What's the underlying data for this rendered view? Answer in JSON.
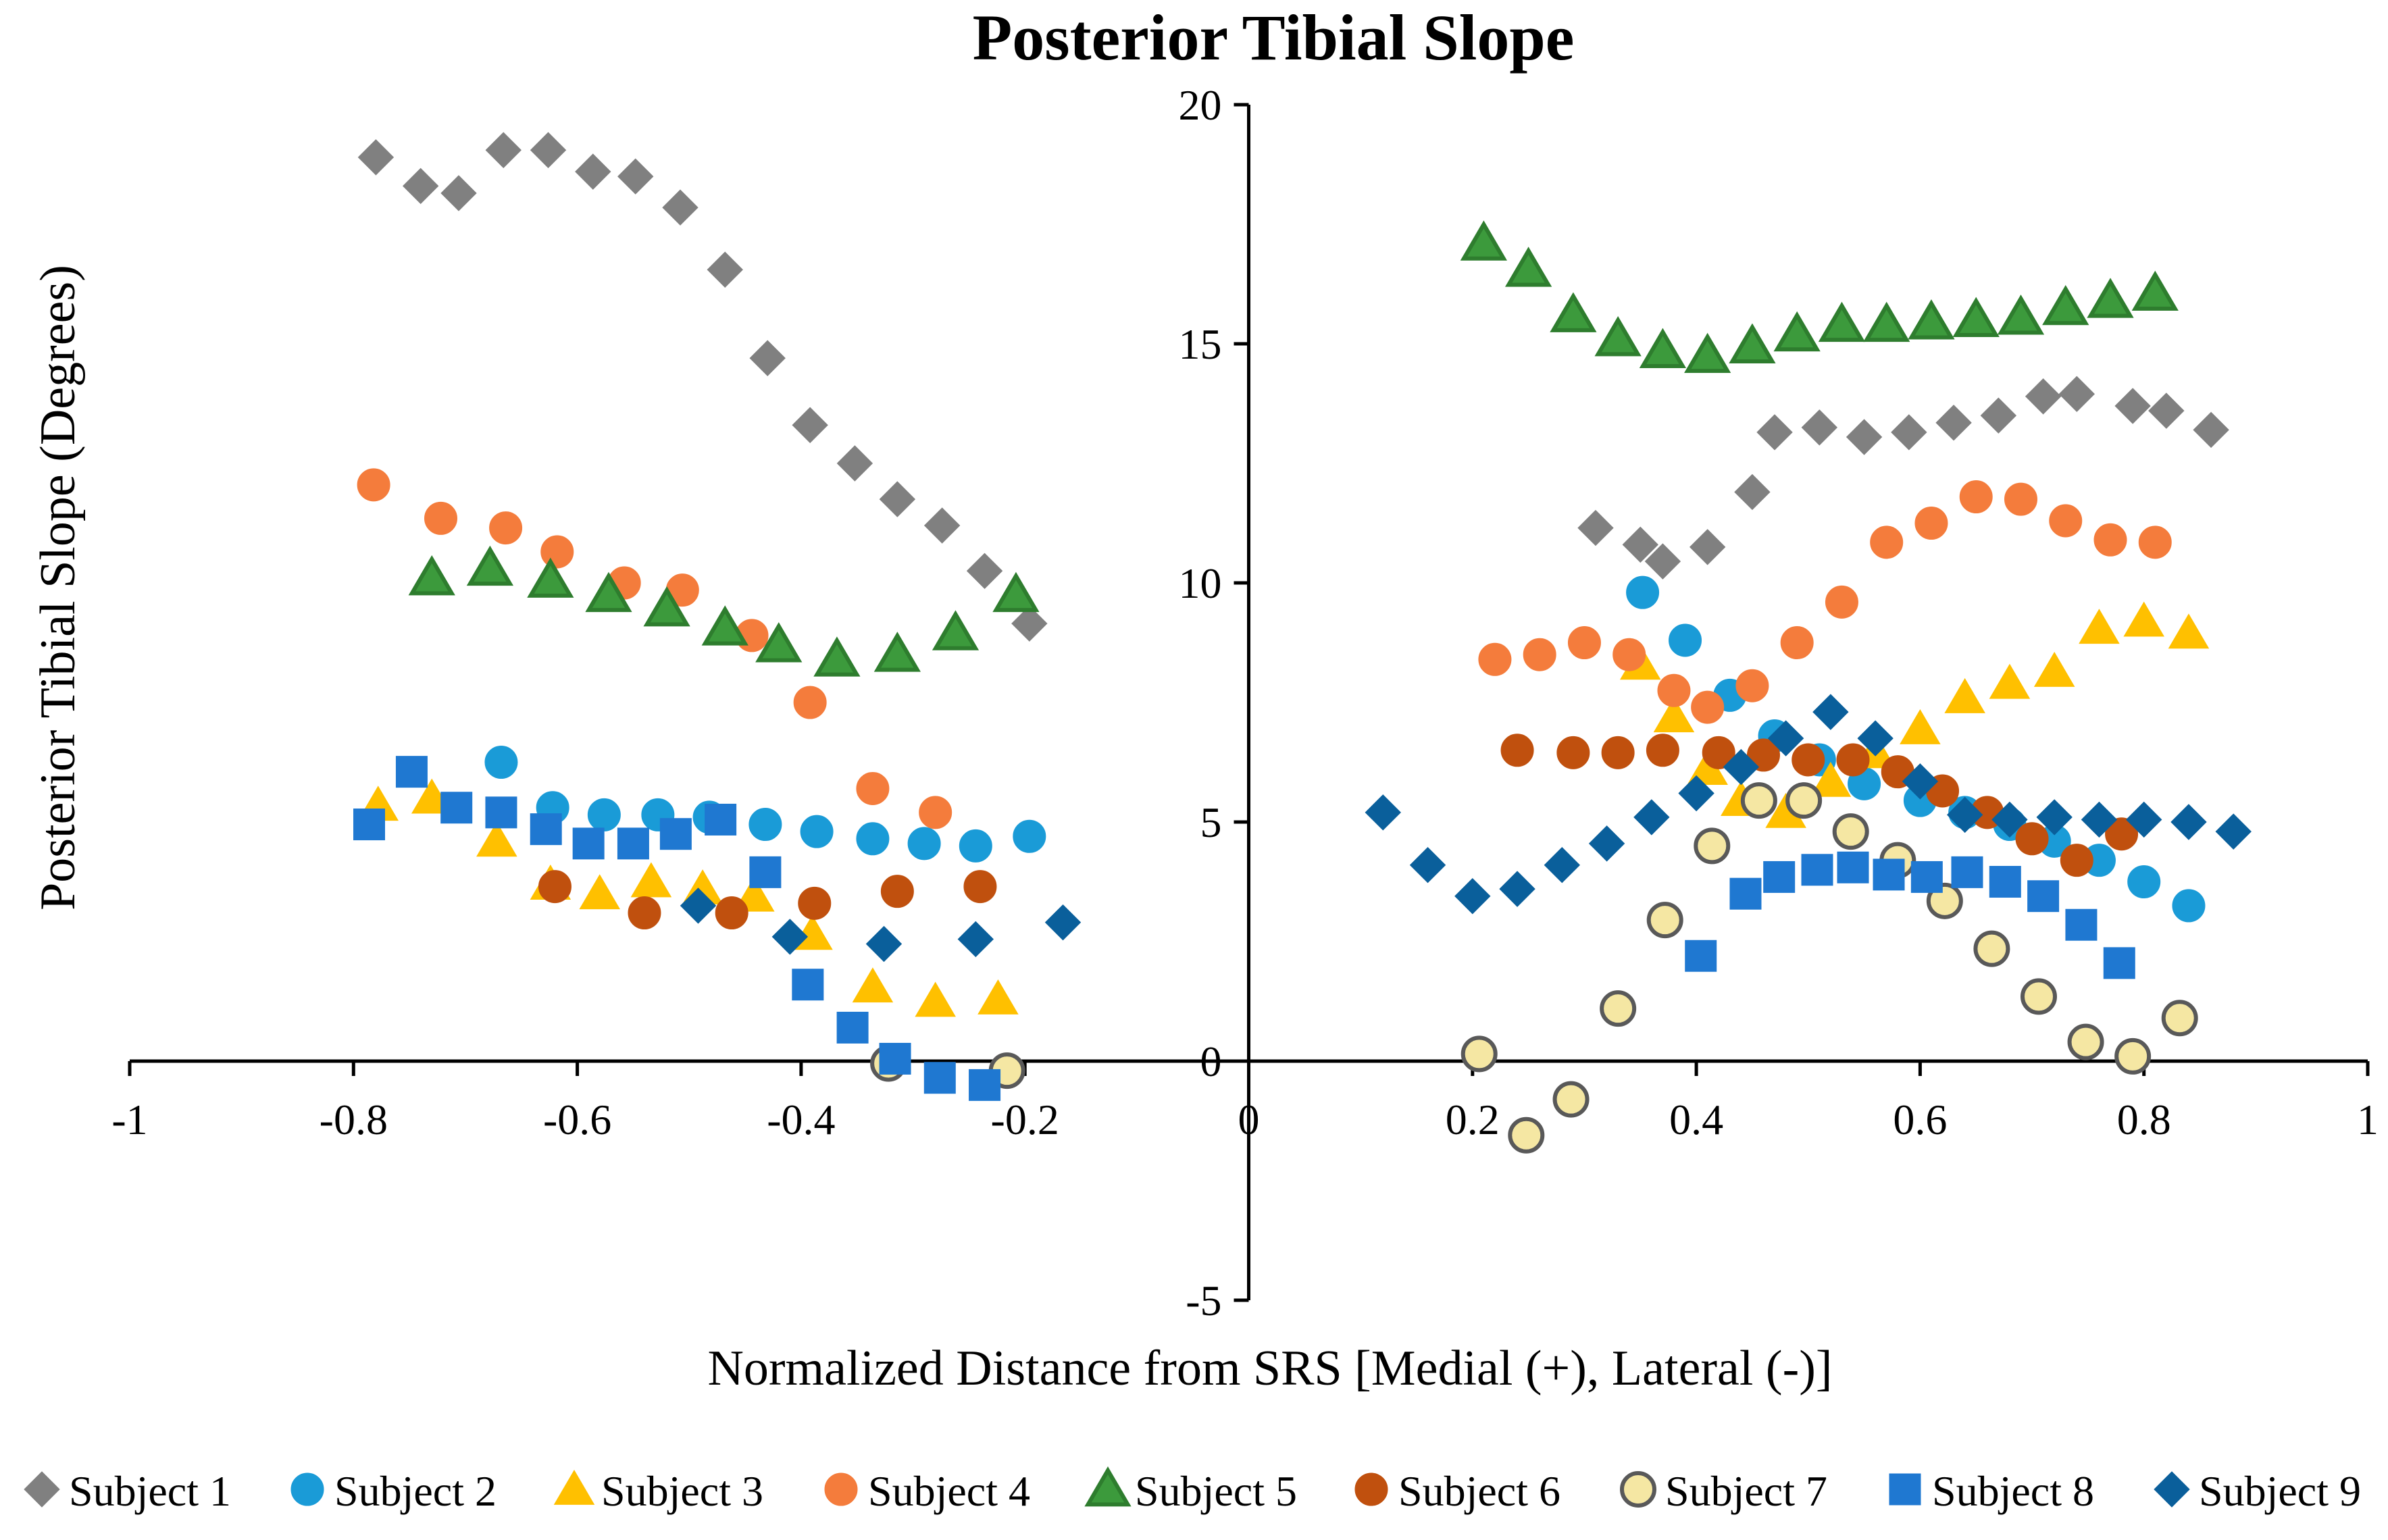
{
  "chart_data": {
    "type": "scatter",
    "title": "Posterior Tibial Slope",
    "xlabel": "Normalized Distance from SRS [Medial (+), Lateral (-)]",
    "ylabel": "Posterior Tibial Slope (Degrees)",
    "xlim": [
      -1,
      1
    ],
    "ylim": [
      -5,
      20
    ],
    "x_ticks": [
      -1,
      -0.8,
      -0.6,
      -0.4,
      -0.2,
      0,
      0.2,
      0.4,
      0.6,
      0.8,
      1
    ],
    "x_tick_labels": [
      "-1",
      "-0.8",
      "-0.6",
      "-0.4",
      "-0.2",
      "0",
      "0.2",
      "0.4",
      "0.6",
      "0.8",
      "1"
    ],
    "y_ticks": [
      -5,
      0,
      5,
      10,
      15,
      20
    ],
    "y_tick_labels": [
      "-5",
      "0",
      "5",
      "10",
      "15",
      "20"
    ],
    "grid": false,
    "legend_position": "bottom",
    "series": [
      {
        "name": "Subject 1",
        "marker": "diamond",
        "color": "#808080",
        "stroke": "#808080",
        "points": [
          [
            -0.78,
            18.9
          ],
          [
            -0.74,
            18.3
          ],
          [
            -0.706,
            18.15
          ],
          [
            -0.666,
            19.05
          ],
          [
            -0.626,
            19.05
          ],
          [
            -0.586,
            18.6
          ],
          [
            -0.548,
            18.5
          ],
          [
            -0.508,
            17.85
          ],
          [
            -0.468,
            16.55
          ],
          [
            -0.43,
            14.7
          ],
          [
            -0.392,
            13.3
          ],
          [
            -0.352,
            12.5
          ],
          [
            -0.314,
            11.75
          ],
          [
            -0.274,
            11.2
          ],
          [
            -0.236,
            10.25
          ],
          [
            -0.196,
            9.15
          ],
          [
            0.31,
            11.15
          ],
          [
            0.35,
            10.8
          ],
          [
            0.37,
            10.45
          ],
          [
            0.41,
            10.75
          ],
          [
            0.45,
            11.9
          ],
          [
            0.47,
            13.15
          ],
          [
            0.51,
            13.25
          ],
          [
            0.55,
            13.05
          ],
          [
            0.59,
            13.15
          ],
          [
            0.63,
            13.35
          ],
          [
            0.67,
            13.5
          ],
          [
            0.71,
            13.9
          ],
          [
            0.74,
            13.95
          ],
          [
            0.79,
            13.7
          ],
          [
            0.82,
            13.6
          ],
          [
            0.86,
            13.2
          ]
        ]
      },
      {
        "name": "Subject 2",
        "marker": "circle",
        "color": "#1a9bd7",
        "stroke": "#1a9bd7",
        "points": [
          [
            -0.668,
            6.25
          ],
          [
            -0.622,
            5.3
          ],
          [
            -0.576,
            5.15
          ],
          [
            -0.528,
            5.15
          ],
          [
            -0.482,
            5.1
          ],
          [
            -0.432,
            4.95
          ],
          [
            -0.386,
            4.8
          ],
          [
            -0.336,
            4.65
          ],
          [
            -0.29,
            4.55
          ],
          [
            -0.244,
            4.5
          ],
          [
            -0.196,
            4.7
          ],
          [
            0.352,
            9.8
          ],
          [
            0.39,
            8.8
          ],
          [
            0.43,
            7.65
          ],
          [
            0.47,
            6.8
          ],
          [
            0.51,
            6.3
          ],
          [
            0.55,
            5.8
          ],
          [
            0.6,
            5.45
          ],
          [
            0.64,
            5.2
          ],
          [
            0.68,
            4.95
          ],
          [
            0.72,
            4.6
          ],
          [
            0.76,
            4.2
          ],
          [
            0.8,
            3.75
          ],
          [
            0.84,
            3.25
          ]
        ]
      },
      {
        "name": "Subject 3",
        "marker": "triangle",
        "color": "#ffc000",
        "stroke": "#ffc000",
        "points": [
          [
            -0.778,
            5.35
          ],
          [
            -0.73,
            5.5
          ],
          [
            -0.672,
            4.6
          ],
          [
            -0.624,
            3.7
          ],
          [
            -0.58,
            3.5
          ],
          [
            -0.534,
            3.75
          ],
          [
            -0.488,
            3.6
          ],
          [
            -0.442,
            3.45
          ],
          [
            -0.39,
            2.65
          ],
          [
            -0.336,
            1.55
          ],
          [
            -0.28,
            1.25
          ],
          [
            -0.224,
            1.3
          ],
          [
            0.35,
            8.3
          ],
          [
            0.38,
            7.2
          ],
          [
            0.41,
            6.1
          ],
          [
            0.44,
            5.45
          ],
          [
            0.48,
            5.2
          ],
          [
            0.52,
            5.85
          ],
          [
            0.56,
            6.45
          ],
          [
            0.6,
            6.95
          ],
          [
            0.64,
            7.6
          ],
          [
            0.68,
            7.9
          ],
          [
            0.72,
            8.15
          ],
          [
            0.76,
            9.05
          ],
          [
            0.8,
            9.2
          ],
          [
            0.84,
            8.95
          ]
        ]
      },
      {
        "name": "Subject 4",
        "marker": "circle",
        "color": "#f47c3c",
        "stroke": "#f47c3c",
        "points": [
          [
            -0.782,
            12.05
          ],
          [
            -0.722,
            11.35
          ],
          [
            -0.664,
            11.15
          ],
          [
            -0.618,
            10.65
          ],
          [
            -0.558,
            10.0
          ],
          [
            -0.506,
            9.85
          ],
          [
            -0.444,
            8.9
          ],
          [
            -0.392,
            7.5
          ],
          [
            -0.336,
            5.7
          ],
          [
            -0.28,
            5.2
          ],
          [
            0.22,
            8.4
          ],
          [
            0.26,
            8.5
          ],
          [
            0.3,
            8.75
          ],
          [
            0.34,
            8.5
          ],
          [
            0.38,
            7.75
          ],
          [
            0.41,
            7.4
          ],
          [
            0.45,
            7.85
          ],
          [
            0.49,
            8.75
          ],
          [
            0.53,
            9.6
          ],
          [
            0.57,
            10.85
          ],
          [
            0.61,
            11.25
          ],
          [
            0.65,
            11.8
          ],
          [
            0.69,
            11.75
          ],
          [
            0.73,
            11.3
          ],
          [
            0.77,
            10.9
          ],
          [
            0.81,
            10.85
          ]
        ]
      },
      {
        "name": "Subject 5",
        "marker": "triangle",
        "color": "#3c9a3c",
        "stroke": "#2e7d2e",
        "points": [
          [
            -0.73,
            10.1
          ],
          [
            -0.678,
            10.3
          ],
          [
            -0.624,
            10.05
          ],
          [
            -0.572,
            9.75
          ],
          [
            -0.52,
            9.45
          ],
          [
            -0.468,
            9.05
          ],
          [
            -0.42,
            8.7
          ],
          [
            -0.368,
            8.4
          ],
          [
            -0.314,
            8.5
          ],
          [
            -0.262,
            8.95
          ],
          [
            -0.208,
            9.75
          ],
          [
            0.21,
            17.1
          ],
          [
            0.25,
            16.55
          ],
          [
            0.29,
            15.6
          ],
          [
            0.33,
            15.1
          ],
          [
            0.37,
            14.85
          ],
          [
            0.41,
            14.75
          ],
          [
            0.45,
            14.95
          ],
          [
            0.49,
            15.2
          ],
          [
            0.53,
            15.4
          ],
          [
            0.57,
            15.4
          ],
          [
            0.61,
            15.45
          ],
          [
            0.65,
            15.5
          ],
          [
            0.69,
            15.55
          ],
          [
            0.73,
            15.75
          ],
          [
            0.77,
            15.9
          ],
          [
            0.81,
            16.05
          ]
        ]
      },
      {
        "name": "Subject 6",
        "marker": "circle",
        "color": "#c0500e",
        "stroke": "#c0500e",
        "points": [
          [
            -0.62,
            3.65
          ],
          [
            -0.54,
            3.1
          ],
          [
            -0.462,
            3.1
          ],
          [
            -0.388,
            3.3
          ],
          [
            -0.314,
            3.55
          ],
          [
            -0.24,
            3.65
          ],
          [
            0.24,
            6.5
          ],
          [
            0.29,
            6.45
          ],
          [
            0.33,
            6.45
          ],
          [
            0.37,
            6.5
          ],
          [
            0.42,
            6.45
          ],
          [
            0.46,
            6.4
          ],
          [
            0.5,
            6.3
          ],
          [
            0.54,
            6.3
          ],
          [
            0.58,
            6.05
          ],
          [
            0.62,
            5.65
          ],
          [
            0.66,
            5.2
          ],
          [
            0.7,
            4.65
          ],
          [
            0.74,
            4.2
          ],
          [
            0.78,
            4.75
          ]
        ]
      },
      {
        "name": "Subject 7",
        "marker": "circle",
        "color": "#f5e7a3",
        "stroke": "#595959",
        "points": [
          [
            -0.322,
            -0.05
          ],
          [
            -0.216,
            -0.2
          ],
          [
            0.206,
            0.15
          ],
          [
            0.248,
            -1.55
          ],
          [
            0.288,
            -0.8
          ],
          [
            0.33,
            1.1
          ],
          [
            0.372,
            2.95
          ],
          [
            0.414,
            4.5
          ],
          [
            0.456,
            5.45
          ],
          [
            0.496,
            5.45
          ],
          [
            0.538,
            4.8
          ],
          [
            0.58,
            4.2
          ],
          [
            0.622,
            3.35
          ],
          [
            0.664,
            2.35
          ],
          [
            0.706,
            1.35
          ],
          [
            0.748,
            0.4
          ],
          [
            0.79,
            0.1
          ],
          [
            0.832,
            0.9
          ]
        ]
      },
      {
        "name": "Subject 8",
        "marker": "square",
        "color": "#1f78d1",
        "stroke": "#1f78d1",
        "points": [
          [
            -0.786,
            4.95
          ],
          [
            -0.748,
            6.05
          ],
          [
            -0.708,
            5.3
          ],
          [
            -0.668,
            5.2
          ],
          [
            -0.628,
            4.85
          ],
          [
            -0.59,
            4.55
          ],
          [
            -0.55,
            4.55
          ],
          [
            -0.512,
            4.75
          ],
          [
            -0.472,
            5.05
          ],
          [
            -0.432,
            3.95
          ],
          [
            -0.394,
            1.6
          ],
          [
            -0.354,
            0.7
          ],
          [
            -0.316,
            0.05
          ],
          [
            -0.276,
            -0.35
          ],
          [
            -0.236,
            -0.5
          ],
          [
            0.404,
            2.2
          ],
          [
            0.444,
            3.5
          ],
          [
            0.474,
            3.85
          ],
          [
            0.508,
            4.0
          ],
          [
            0.54,
            4.05
          ],
          [
            0.572,
            3.9
          ],
          [
            0.606,
            3.85
          ],
          [
            0.642,
            3.95
          ],
          [
            0.676,
            3.75
          ],
          [
            0.71,
            3.45
          ],
          [
            0.744,
            2.85
          ],
          [
            0.778,
            2.05
          ]
        ]
      },
      {
        "name": "Subject 9",
        "marker": "diamond",
        "color": "#0a5f9b",
        "stroke": "#0a5f9b",
        "points": [
          [
            -0.492,
            3.25
          ],
          [
            -0.41,
            2.6
          ],
          [
            -0.326,
            2.45
          ],
          [
            -0.244,
            2.55
          ],
          [
            -0.166,
            2.9
          ],
          [
            0.12,
            5.2
          ],
          [
            0.16,
            4.1
          ],
          [
            0.2,
            3.45
          ],
          [
            0.24,
            3.6
          ],
          [
            0.28,
            4.1
          ],
          [
            0.32,
            4.55
          ],
          [
            0.36,
            5.1
          ],
          [
            0.4,
            5.6
          ],
          [
            0.44,
            6.15
          ],
          [
            0.48,
            6.75
          ],
          [
            0.52,
            7.3
          ],
          [
            0.56,
            6.75
          ],
          [
            0.6,
            5.85
          ],
          [
            0.64,
            5.15
          ],
          [
            0.68,
            5.05
          ],
          [
            0.72,
            5.1
          ],
          [
            0.76,
            5.05
          ],
          [
            0.8,
            5.05
          ],
          [
            0.84,
            5.0
          ],
          [
            0.88,
            4.8
          ]
        ]
      }
    ]
  }
}
